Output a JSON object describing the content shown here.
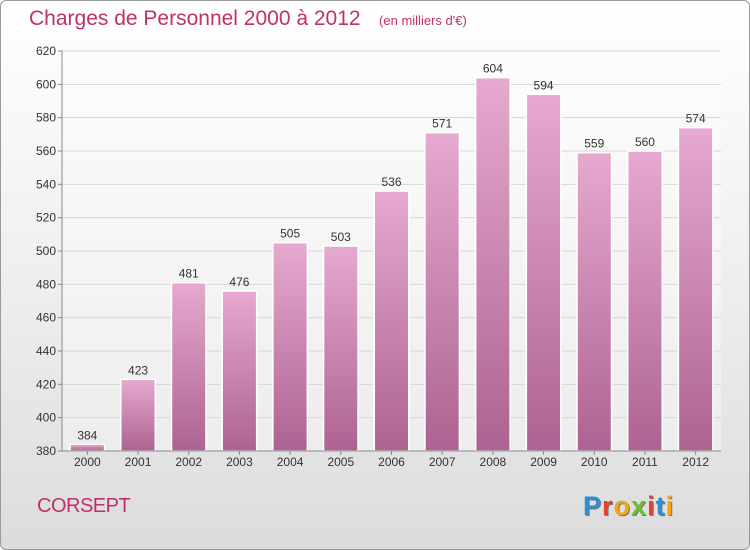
{
  "header": {
    "title": "Charges de Personnel 2000 à 2012",
    "unit": "(en milliers d'€)"
  },
  "footer": {
    "commune": "CORSEPT",
    "logo": {
      "text": "Proxiti",
      "colors": [
        "#2c8fd6",
        "#e8412b",
        "#f2a516",
        "#6cbf2e",
        "#e8412b",
        "#2c8fd6",
        "#f2a516"
      ]
    }
  },
  "chart_data": {
    "type": "bar",
    "title": "Charges de Personnel 2000 à 2012",
    "subtitle": "(en milliers d'€)",
    "xlabel": "",
    "ylabel": "",
    "categories": [
      "2000",
      "2001",
      "2002",
      "2003",
      "2004",
      "2005",
      "2006",
      "2007",
      "2008",
      "2009",
      "2010",
      "2011",
      "2012"
    ],
    "values": [
      384,
      423,
      481,
      476,
      505,
      503,
      536,
      571,
      604,
      594,
      559,
      560,
      574
    ],
    "ylim": [
      380,
      620
    ],
    "yticks": [
      380,
      400,
      420,
      440,
      460,
      480,
      500,
      520,
      540,
      560,
      580,
      600,
      620
    ],
    "grid": true,
    "legend": "none",
    "colors": {
      "bar_top": "#e6a9cf",
      "bar_bottom": "#ad6391",
      "text": "#333333",
      "grid": "#d6d6d6"
    }
  }
}
